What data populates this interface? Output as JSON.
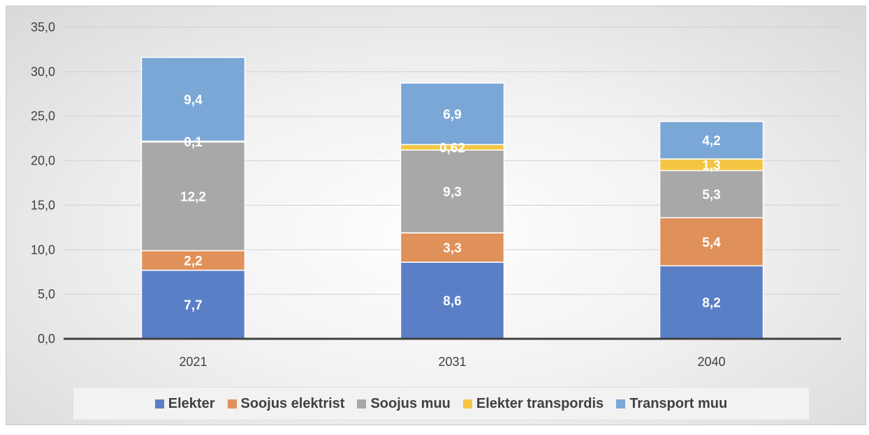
{
  "chart_data": {
    "type": "bar",
    "stacked": true,
    "categories": [
      "2021",
      "2031",
      "2040"
    ],
    "ylim": [
      0,
      35
    ],
    "yticks": [
      "0,0",
      "5,0",
      "10,0",
      "15,0",
      "20,0",
      "25,0",
      "30,0",
      "35,0"
    ],
    "grid": true,
    "legend_position": "bottom",
    "series": [
      {
        "name": "Elekter",
        "color": "#5b7fc7",
        "values": [
          7.7,
          8.6,
          8.2
        ],
        "labels": [
          "7,7",
          "8,6",
          "8,2"
        ]
      },
      {
        "name": "Soojus elektrist",
        "color": "#e0915a",
        "values": [
          2.2,
          3.3,
          5.4
        ],
        "labels": [
          "2,2",
          "3,3",
          "5,4"
        ]
      },
      {
        "name": "Soojus muu",
        "color": "#a8a8a8",
        "values": [
          12.2,
          9.3,
          5.3
        ],
        "labels": [
          "12,2",
          "9,3",
          "5,3"
        ]
      },
      {
        "name": "Elekter transpordis",
        "color": "#f4c542",
        "values": [
          0.1,
          0.62,
          1.3
        ],
        "labels": [
          "0,1",
          "0,62",
          "1,3"
        ]
      },
      {
        "name": "Transport muu",
        "color": "#7ba7d6",
        "values": [
          9.4,
          6.9,
          4.2
        ],
        "labels": [
          "9,4",
          "6,9",
          "4,2"
        ]
      }
    ]
  }
}
